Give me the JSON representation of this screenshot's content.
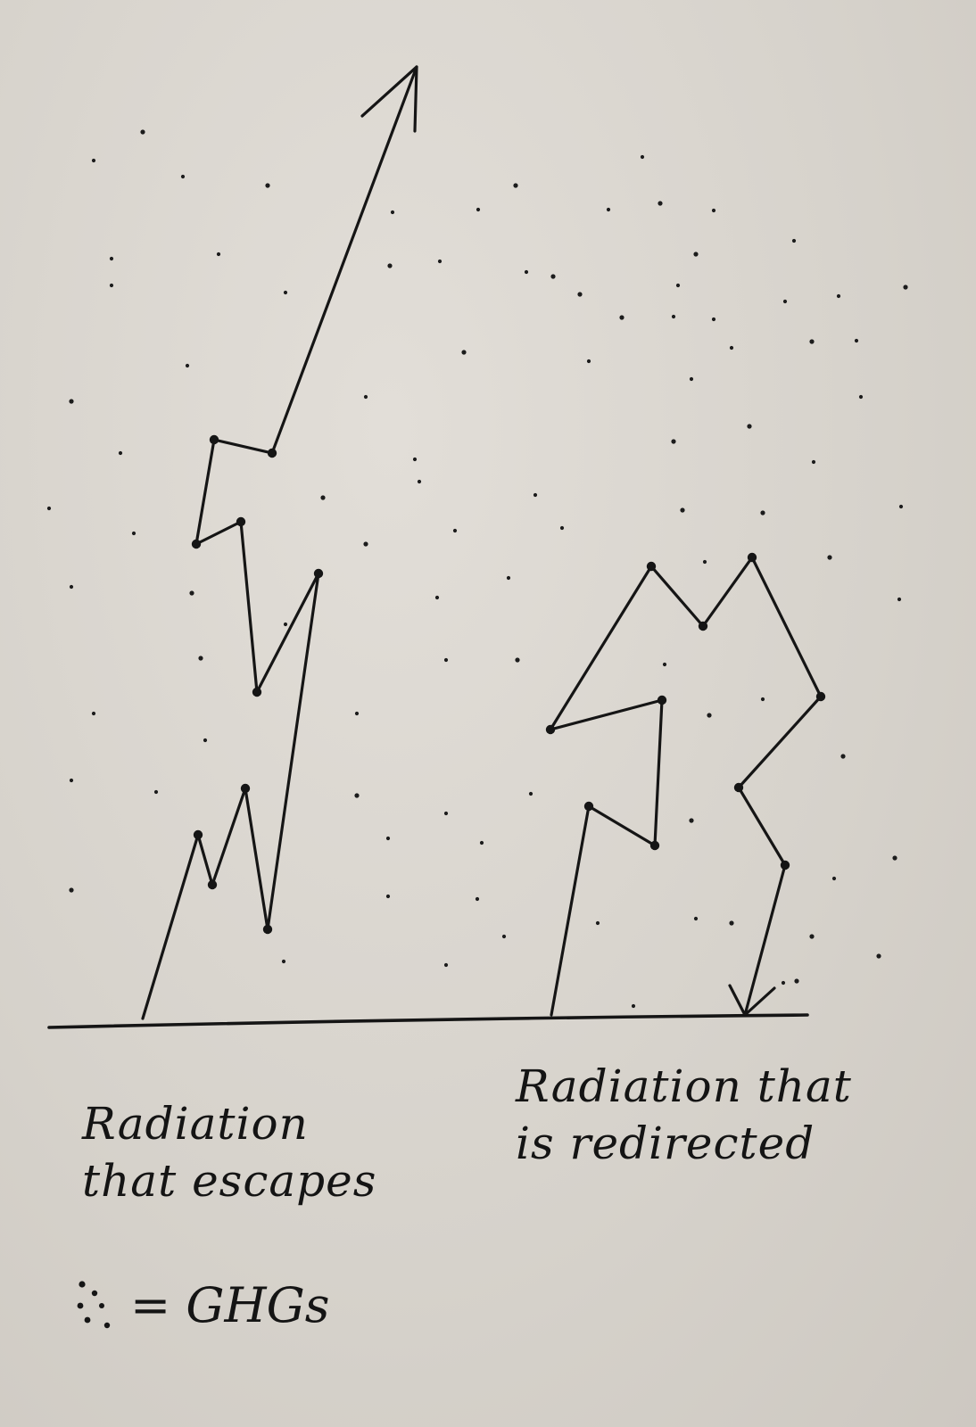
{
  "labels": {
    "escapes": [
      "Radiation",
      "that escapes"
    ],
    "redirected": [
      "Radiation that",
      "is redirected"
    ]
  },
  "legend": {
    "text": "= GHGs",
    "symbol_icon": "dot-cluster-icon"
  },
  "colors": {
    "ink": "#151515",
    "paper": "#dcd8d2"
  }
}
